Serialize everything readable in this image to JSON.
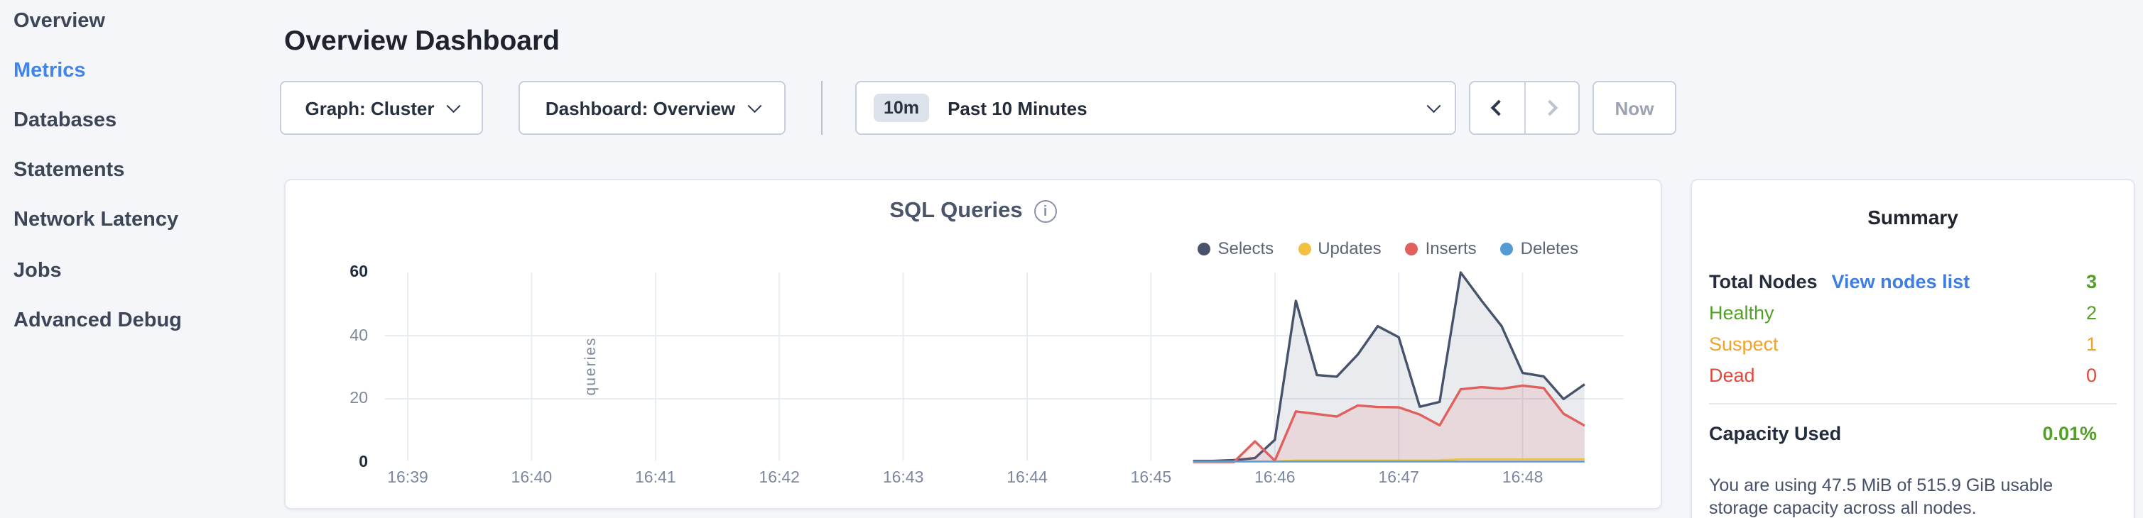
{
  "colors": {
    "page_bg": "#f5f6fa",
    "accent_blue": "#4285e8",
    "green": "#52a025",
    "orange": "#efa32a",
    "red": "#e2493d",
    "grid": "#e8ecf3"
  },
  "sidebar": {
    "items": [
      {
        "label": "Overview",
        "active": false
      },
      {
        "label": "Metrics",
        "active": true
      },
      {
        "label": "Databases",
        "active": false
      },
      {
        "label": "Statements",
        "active": false
      },
      {
        "label": "Network Latency",
        "active": false
      },
      {
        "label": "Jobs",
        "active": false
      },
      {
        "label": "Advanced Debug",
        "active": false
      }
    ]
  },
  "header": {
    "title": "Overview Dashboard"
  },
  "toolbar": {
    "graph_dropdown_label": "Graph: Cluster",
    "dashboard_dropdown_label": "Dashboard: Overview",
    "time_window_badge": "10m",
    "time_window_label": "Past 10 Minutes",
    "now_label": "Now"
  },
  "chart_data": {
    "type": "area",
    "title": "SQL Queries",
    "ylabel": "queries",
    "xlabel": "",
    "x_tick_minutes": [
      0,
      1,
      2,
      3,
      4,
      5,
      6,
      7,
      8,
      9
    ],
    "x_tick_labels": [
      "16:39",
      "16:40",
      "16:41",
      "16:42",
      "16:43",
      "16:44",
      "16:45",
      "16:46",
      "16:47",
      "16:48"
    ],
    "y_ticks": [
      0,
      20,
      40,
      60
    ],
    "y_grid_values": [
      20,
      40
    ],
    "ylim": [
      0,
      63
    ],
    "legend_position": "top-right",
    "grid": true,
    "series": [
      {
        "name": "Selects",
        "color": "#46536b",
        "fill": "rgba(90,103,128,0.13)",
        "points": [
          [
            6.34,
            0.3
          ],
          [
            6.5,
            0.3
          ],
          [
            6.67,
            0.6
          ],
          [
            6.84,
            1.2
          ],
          [
            7.0,
            7
          ],
          [
            7.17,
            51
          ],
          [
            7.34,
            27.5
          ],
          [
            7.5,
            27
          ],
          [
            7.67,
            34
          ],
          [
            7.83,
            43
          ],
          [
            8.0,
            39.5
          ],
          [
            8.17,
            17.5
          ],
          [
            8.33,
            19
          ],
          [
            8.5,
            60
          ],
          [
            8.67,
            51
          ],
          [
            8.83,
            43
          ],
          [
            9.0,
            28.2
          ],
          [
            9.17,
            27.1
          ],
          [
            9.33,
            19.9
          ],
          [
            9.5,
            24.6
          ]
        ]
      },
      {
        "name": "Inserts",
        "color": "#e0605e",
        "fill": "rgba(224,96,94,0.13)",
        "points": [
          [
            6.34,
            0
          ],
          [
            6.5,
            0
          ],
          [
            6.67,
            0
          ],
          [
            6.84,
            6.5
          ],
          [
            7.0,
            0.4
          ],
          [
            7.17,
            16
          ],
          [
            7.34,
            15.2
          ],
          [
            7.5,
            14.4
          ],
          [
            7.67,
            17.9
          ],
          [
            7.83,
            17.4
          ],
          [
            8.0,
            17.3
          ],
          [
            8.17,
            15
          ],
          [
            8.33,
            11.6
          ],
          [
            8.5,
            23
          ],
          [
            8.67,
            23.7
          ],
          [
            8.83,
            23.2
          ],
          [
            9.0,
            24.2
          ],
          [
            9.17,
            23.4
          ],
          [
            9.33,
            15.3
          ],
          [
            9.5,
            11.5
          ]
        ]
      },
      {
        "name": "Updates",
        "color": "#eec33e",
        "fill": "none",
        "points": [
          [
            6.34,
            0.1
          ],
          [
            7.0,
            0.2
          ],
          [
            7.17,
            0.5
          ],
          [
            8.3,
            0.5
          ],
          [
            8.5,
            0.9
          ],
          [
            9.5,
            0.9
          ]
        ]
      },
      {
        "name": "Deletes",
        "color": "#5b9fd4",
        "fill": "none",
        "points": [
          [
            6.34,
            0.15
          ],
          [
            9.5,
            0.15
          ]
        ]
      }
    ],
    "legend": [
      {
        "label": "Selects",
        "color": "#46536b"
      },
      {
        "label": "Updates",
        "color": "#f1c241"
      },
      {
        "label": "Inserts",
        "color": "#e0605e"
      },
      {
        "label": "Deletes",
        "color": "#539bd5"
      }
    ]
  },
  "summary": {
    "title": "Summary",
    "rows": [
      {
        "label": "Total Nodes",
        "link": "View nodes list",
        "value": "3",
        "label_color": "#242d3d",
        "value_color": "#52a025",
        "bold": true
      },
      {
        "label": "Healthy",
        "link": null,
        "value": "2",
        "label_color": "#52a025",
        "value_color": "#52a025",
        "bold": false
      },
      {
        "label": "Suspect",
        "link": null,
        "value": "1",
        "label_color": "#efa32a",
        "value_color": "#efa32a",
        "bold": false
      },
      {
        "label": "Dead",
        "link": null,
        "value": "0",
        "label_color": "#e2493d",
        "value_color": "#e2493d",
        "bold": false
      }
    ],
    "capacity_label": "Capacity Used",
    "capacity_value": "0.01%",
    "capacity_note": "You are using 47.5 MiB of 515.9 GiB usable storage capacity across all nodes."
  }
}
